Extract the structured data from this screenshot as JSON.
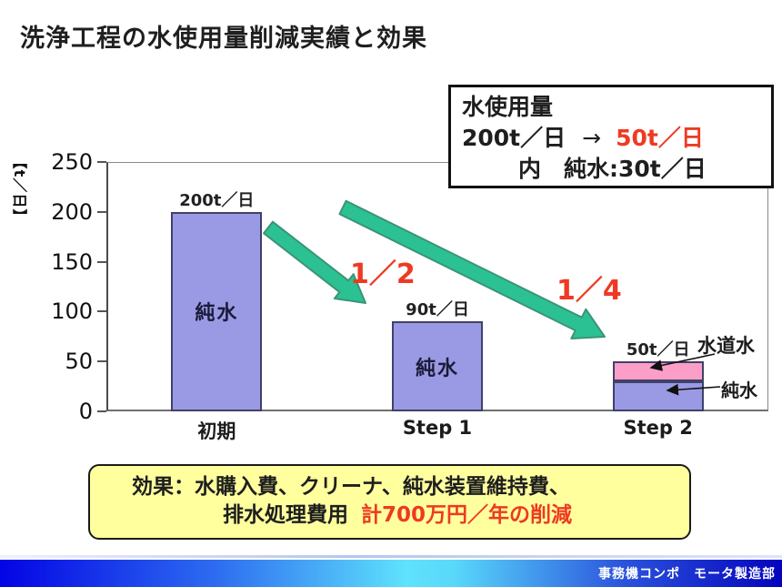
{
  "slide": {
    "title": "洗浄工程の水使用量削減実績と効果",
    "footer_text": "事務機コンポ　モータ製造部"
  },
  "info_box": {
    "title": "水使用量",
    "from": "200t／日",
    "arrow": "→",
    "to": "50t／日",
    "detail": "内　純水:30t／日"
  },
  "chart_data": {
    "type": "bar",
    "stacked": true,
    "title": "",
    "xlabel": "",
    "ylabel": "【t／日】",
    "ylim": [
      0,
      250
    ],
    "yticks": [
      250,
      200,
      150,
      100,
      50,
      0
    ],
    "grid": false,
    "legend": "none",
    "categories": [
      "初期",
      "Step 1",
      "Step 2"
    ],
    "series": [
      {
        "name": "純水",
        "color": "#9a9ae4",
        "values": [
          200,
          90,
          30
        ]
      },
      {
        "name": "水道水",
        "color": "#fb9fc8",
        "values": [
          0,
          0,
          20
        ]
      }
    ],
    "totals": [
      "200t／日",
      "90t／日",
      "50t／日"
    ],
    "inner_labels": [
      "純水",
      "純水",
      ""
    ],
    "reduction_labels": [
      "1／2",
      "1／4"
    ],
    "callout_labels": [
      "水道水",
      "純水"
    ]
  },
  "effect_box": {
    "line1": "効果：水購入費、クリーナ、純水装置維持費、",
    "line2_prefix": "排水処理費用",
    "line2_highlight": "計700万円／年の削減"
  },
  "colors": {
    "pure_water_bar": "#9a9ae4",
    "tap_water_bar": "#fb9fc8",
    "arrow_green_fill": "#2cc192",
    "arrow_green_stroke": "#3a9478",
    "highlight_red": "#ee3a22",
    "effect_box_bg": "#ffff9e",
    "footer_blue_dark": "#0404d0",
    "footer_cyan": "#5fe2fc"
  }
}
